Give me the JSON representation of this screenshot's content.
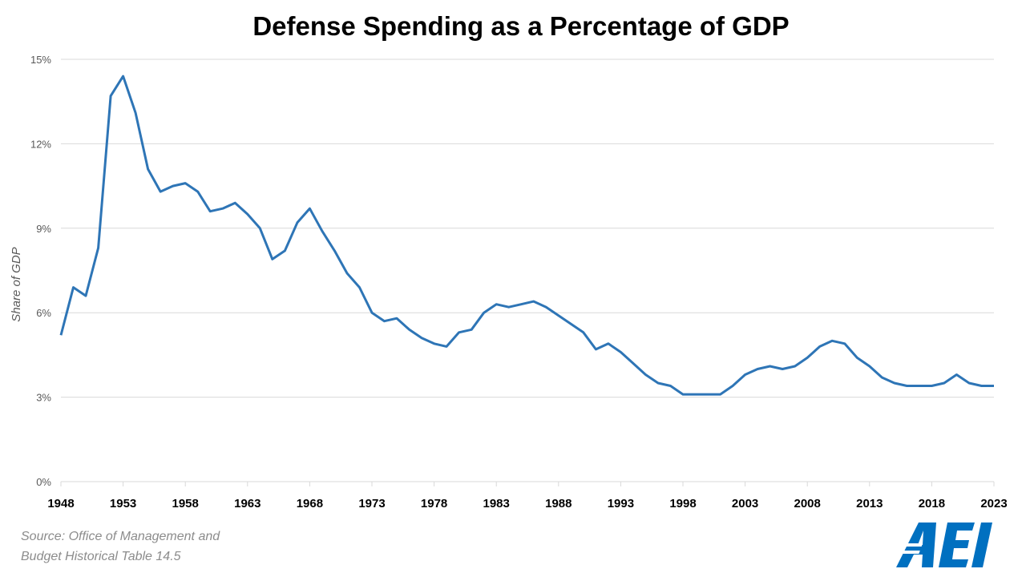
{
  "chart_data": {
    "type": "line",
    "title": "Defense Spending as a Percentage of GDP",
    "ylabel": "Share of GDP",
    "xlabel": "",
    "ylim": [
      0,
      15
    ],
    "yticks": [
      "0%",
      "3%",
      "6%",
      "9%",
      "12%",
      "15%"
    ],
    "ytick_values": [
      0,
      3,
      6,
      9,
      12,
      15
    ],
    "xlim": [
      1948,
      2023
    ],
    "xticks": [
      "1948",
      "1953",
      "1958",
      "1963",
      "1968",
      "1973",
      "1978",
      "1983",
      "1988",
      "1993",
      "1998",
      "2003",
      "2008",
      "2013",
      "2018",
      "2023"
    ],
    "grid": true,
    "color": "#2e75b6",
    "series": [
      {
        "x": [
          1948,
          1949,
          1950,
          1951,
          1952,
          1953,
          1954,
          1955,
          1956,
          1957,
          1958,
          1959,
          1960,
          1961,
          1962,
          1963,
          1964,
          1965,
          1966,
          1967,
          1968,
          1969,
          1970,
          1971,
          1972,
          1973,
          1974,
          1975,
          1976,
          1977,
          1978,
          1979,
          1980,
          1981,
          1982,
          1983,
          1984,
          1985,
          1986,
          1987,
          1988,
          1989,
          1990,
          1991,
          1992,
          1993,
          1994,
          1995,
          1996,
          1997,
          1998,
          1999,
          2000,
          2001,
          2002,
          2003,
          2004,
          2005,
          2006,
          2007,
          2008,
          2009,
          2010,
          2011,
          2012,
          2013,
          2014,
          2015,
          2016,
          2017,
          2018,
          2019,
          2020,
          2021,
          2022,
          2023
        ],
        "values": [
          5.2,
          6.9,
          6.6,
          8.3,
          13.7,
          14.4,
          13.1,
          11.1,
          10.3,
          10.5,
          10.6,
          10.3,
          9.6,
          9.7,
          9.9,
          9.5,
          9.0,
          7.9,
          8.2,
          9.2,
          9.7,
          8.9,
          8.2,
          7.4,
          6.9,
          6.0,
          5.7,
          5.8,
          5.4,
          5.1,
          4.9,
          4.8,
          5.3,
          5.4,
          6.0,
          6.3,
          6.2,
          6.3,
          6.4,
          6.2,
          5.9,
          5.6,
          5.3,
          4.7,
          4.9,
          4.6,
          4.2,
          3.8,
          3.5,
          3.4,
          3.1,
          3.1,
          3.1,
          3.1,
          3.4,
          3.8,
          4.0,
          4.1,
          4.0,
          4.1,
          4.4,
          4.8,
          5.0,
          4.9,
          4.4,
          4.1,
          3.7,
          3.5,
          3.4,
          3.4,
          3.4,
          3.5,
          3.8,
          3.5,
          3.4,
          3.4
        ]
      }
    ]
  },
  "source_note": {
    "line1": "Source: Office of Management and",
    "line2": "Budget Historical Table 14.5"
  },
  "logo": {
    "text": "AEI",
    "color": "#0070c0"
  }
}
